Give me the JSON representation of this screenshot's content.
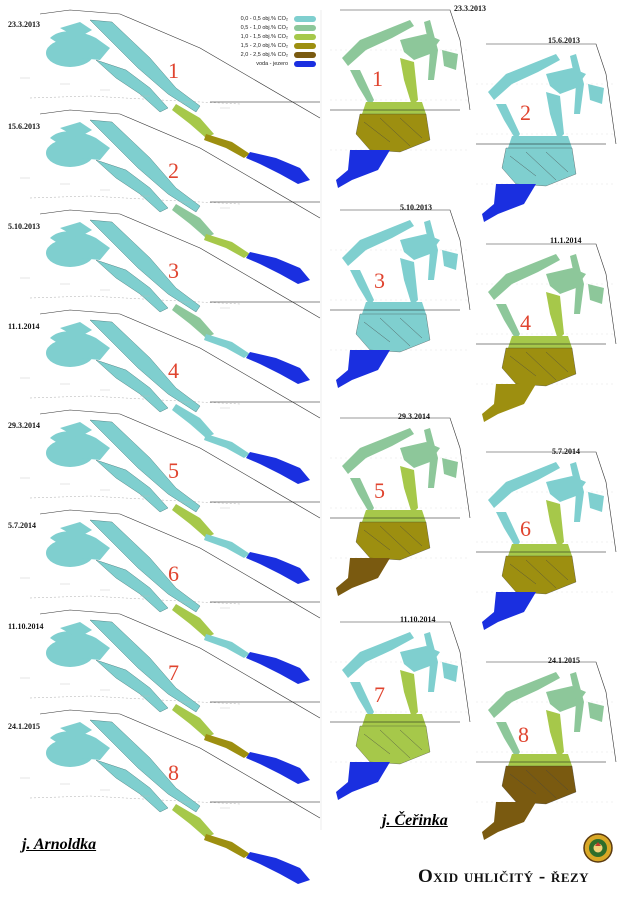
{
  "legend": {
    "items": [
      {
        "label": "0,0 - 0,5  obj.% CO₂",
        "color": "#7fcfcf"
      },
      {
        "label": "0,5 - 1,0  obj.% CO₂",
        "color": "#8dc79a"
      },
      {
        "label": "1,0 - 1,5  obj.% CO₂",
        "color": "#a6c84a"
      },
      {
        "label": "1,5 - 2,0  obj.% CO₂",
        "color": "#9d8f10"
      },
      {
        "label": "2,0 - 2,5  obj.% CO₂",
        "color": "#7a5a10"
      },
      {
        "label": "voda - jezero",
        "color": "#1a2fe0"
      }
    ]
  },
  "arnoldka": {
    "name": "j. Arnoldka",
    "panels": [
      {
        "date": "23.3.2013",
        "num": "1"
      },
      {
        "date": "15.6.2013",
        "num": "2"
      },
      {
        "date": "5.10.2013",
        "num": "3"
      },
      {
        "date": "11.1.2014",
        "num": "4"
      },
      {
        "date": "29.3.2014",
        "num": "5"
      },
      {
        "date": "5.7.2014",
        "num": "6"
      },
      {
        "date": "11.10.2014",
        "num": "7"
      },
      {
        "date": "24.1.2015",
        "num": "8"
      }
    ]
  },
  "cerinka": {
    "name": "j. Čeřinka",
    "panels": [
      {
        "date": "23.3.2013",
        "num": "1"
      },
      {
        "date": "15.6.2013",
        "num": "2"
      },
      {
        "date": "5.10.2013",
        "num": "3"
      },
      {
        "date": "11.1.2014",
        "num": "4"
      },
      {
        "date": "29.3.2014",
        "num": "5"
      },
      {
        "date": "5.7.2014",
        "num": "6"
      },
      {
        "date": "11.10.2014",
        "num": "7"
      },
      {
        "date": "24.1.2015",
        "num": "8"
      }
    ]
  },
  "title": "Oxid uhličitý - řezy",
  "colors": {
    "c0": "#7fcfcf",
    "c1": "#8dc79a",
    "c2": "#a6c84a",
    "c3": "#9d8f10",
    "c4": "#7a5a10",
    "water": "#1a2fe0",
    "number": "#e0442f"
  },
  "emblem": "emblem-logo"
}
